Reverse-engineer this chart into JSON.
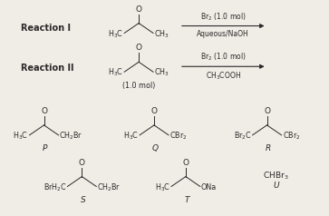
{
  "bg_color": "#f0ece6",
  "text_color": "#2a2a2a",
  "fig_width": 3.63,
  "fig_height": 2.38,
  "dpi": 100,
  "reaction_I_label": "Reaction I",
  "reaction_II_label": "Reaction II",
  "reaction_I_arrow_above": "Br$_2$ (1.0 mol)",
  "reaction_I_arrow_below": "Aqueous/NaOH",
  "reaction_II_arrow_above": "Br$_2$ (1.0 mol)",
  "reaction_II_arrow_below": "CH$_3$COOH",
  "reaction_II_mol": "(1.0 mol)",
  "label_P": "P",
  "label_Q": "Q",
  "label_R": "R",
  "label_S": "S",
  "label_T": "T",
  "label_U": "U"
}
